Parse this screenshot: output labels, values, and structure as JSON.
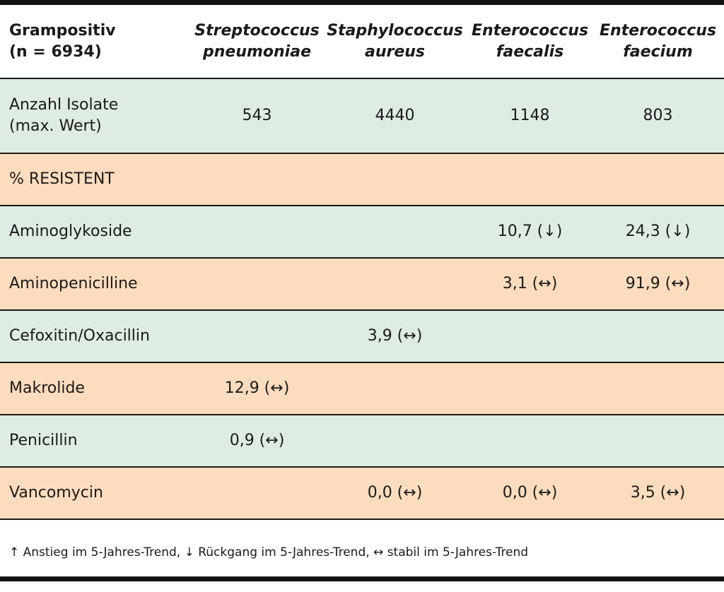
{
  "header": {
    "group_line1": "Grampositiv",
    "group_line2": "(n = 6934)",
    "organisms": [
      {
        "line1": "Streptococcus",
        "line2": "pneumoniae"
      },
      {
        "line1": "Staphylococcus",
        "line2": "aureus"
      },
      {
        "line1": "Enterococcus",
        "line2": "faecalis"
      },
      {
        "line1": "Enterococcus",
        "line2": "faecium"
      }
    ]
  },
  "count_row": {
    "label_line1": "Anzahl Isolate",
    "label_line2": "(max. Wert)",
    "values": [
      "543",
      "4440",
      "1148",
      "803"
    ]
  },
  "section_label": "% RESISTENT",
  "rows": [
    {
      "label": "Aminoglykoside",
      "values": [
        "",
        "",
        "10,7 (↓)",
        "24,3 (↓)"
      ]
    },
    {
      "label": "Aminopenicilline",
      "values": [
        "",
        "",
        "3,1 (↔)",
        "91,9 (↔)"
      ]
    },
    {
      "label": "Cefoxitin/Oxacillin",
      "values": [
        "",
        "3,9 (↔)",
        "",
        ""
      ]
    },
    {
      "label": "Makrolide",
      "values": [
        "12,9 (↔)",
        "",
        "",
        ""
      ]
    },
    {
      "label": "Penicillin",
      "values": [
        "0,9 (↔)",
        "",
        "",
        ""
      ]
    },
    {
      "label": "Vancomycin",
      "values": [
        "",
        "0,0 (↔)",
        "0,0 (↔)",
        "3,5 (↔)"
      ]
    }
  ],
  "footnote": "↑ Anstieg im 5-Jahres-Trend, ↓ Rückgang im 5-Jahres-Trend, ↔ stabil im 5-Jahres-Trend",
  "colors": {
    "green_row": "#dfece2",
    "peach_row": "#fcdcbe",
    "rule": "#111111"
  }
}
